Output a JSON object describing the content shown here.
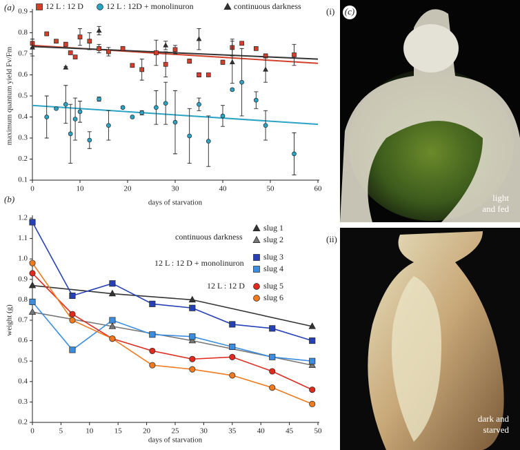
{
  "chart_data": [
    {
      "type": "scatter",
      "panel": "(a)",
      "y_label": "maximum quantum yield Fv/Fm",
      "x_label": "days of starvation",
      "xlim": [
        0,
        60
      ],
      "xticks": [
        0,
        10,
        20,
        30,
        40,
        50,
        60
      ],
      "ylim": [
        0.1,
        0.9
      ],
      "yticks": [
        0.1,
        0.2,
        0.3,
        0.4,
        0.5,
        0.6,
        0.7,
        0.8,
        0.9
      ],
      "legend": "top",
      "trend_x": [
        0,
        60
      ],
      "series": [
        {
          "name": "12 L : 12 D",
          "color": "#d2402c",
          "marker": "square",
          "x": [
            0,
            3,
            5,
            7,
            8,
            9,
            10,
            12,
            14,
            16,
            19,
            21,
            23,
            26,
            28,
            30,
            33,
            35,
            37,
            40,
            42,
            44,
            47,
            49,
            55
          ],
          "values": [
            0.75,
            0.795,
            0.76,
            0.745,
            0.705,
            0.685,
            0.78,
            0.76,
            0.725,
            0.71,
            0.725,
            0.645,
            0.625,
            0.705,
            0.65,
            0.72,
            0.665,
            0.6,
            0.6,
            0.66,
            0.73,
            0.75,
            0.725,
            0.69,
            0.695
          ],
          "errors": [
            0.02,
            0.005,
            0.005,
            0.01,
            0.005,
            0.005,
            0.04,
            0.04,
            0.02,
            0.02,
            0.01,
            0.005,
            0.05,
            0.06,
            0.06,
            0.02,
            0.01,
            0.01,
            0.005,
            0.01,
            0.04,
            0.005,
            0.005,
            0.01,
            0.05
          ],
          "trend": [
            0.74,
            0.655
          ]
        },
        {
          "name": "12 L : 12D + monolinuron",
          "color": "#2aa3c4",
          "marker": "circle",
          "x": [
            3,
            5,
            7,
            8,
            9,
            10,
            12,
            14,
            16,
            19,
            21,
            23,
            26,
            28,
            30,
            33,
            35,
            37,
            40,
            42,
            44,
            47,
            49,
            55
          ],
          "values": [
            0.4,
            0.44,
            0.46,
            0.32,
            0.39,
            0.425,
            0.29,
            0.485,
            0.36,
            0.445,
            0.4,
            0.42,
            0.445,
            0.465,
            0.375,
            0.31,
            0.46,
            0.285,
            0.405,
            0.53,
            0.565,
            0.48,
            0.36,
            0.225
          ],
          "errors": [
            0.1,
            0.005,
            0.09,
            0.14,
            0.1,
            0.05,
            0.04,
            0.01,
            0.07,
            0.005,
            0.005,
            0.01,
            0.08,
            0.1,
            0.15,
            0.13,
            0.03,
            0.12,
            0.05,
            0.005,
            0.16,
            0.04,
            0.07,
            0.1
          ],
          "trend": [
            0.455,
            0.365
          ]
        },
        {
          "name": "continuous darkness",
          "color": "#333333",
          "marker": "triangle",
          "x": [
            0,
            7,
            14,
            28,
            35,
            42,
            49
          ],
          "values": [
            0.73,
            0.635,
            0.81,
            0.74,
            0.77,
            0.66,
            0.625
          ],
          "errors": [
            0.04,
            0.005,
            0.02,
            0.02,
            0.05,
            0.1,
            0.06
          ],
          "trend": [
            0.735,
            0.675
          ]
        }
      ]
    },
    {
      "type": "line",
      "panel": "(b)",
      "y_label": "weight (g)",
      "x_label": "days of starvation",
      "xlim": [
        0,
        50
      ],
      "xticks": [
        0,
        5,
        10,
        15,
        20,
        25,
        30,
        35,
        40,
        45,
        50
      ],
      "ylim": [
        0.2,
        1.2
      ],
      "yticks": [
        0.2,
        0.3,
        0.4,
        0.5,
        0.6,
        0.7,
        0.8,
        0.9,
        {
          "value": 1,
          "label": "1.0"
        },
        1.1,
        1.2
      ],
      "legend": "right",
      "annotations": [
        "continuous darkness",
        "12 L : 12 D + monolinuron",
        "12 L : 12 D"
      ],
      "series": [
        {
          "name": "slug 1",
          "color": "#333333",
          "marker": "triangle",
          "x": [
            0,
            14,
            28,
            49
          ],
          "values": [
            0.87,
            0.83,
            0.8,
            0.67
          ]
        },
        {
          "name": "slug 2",
          "color": "#777777",
          "marker": "triangle",
          "x": [
            0,
            14,
            28,
            49
          ],
          "values": [
            0.74,
            0.67,
            0.6,
            0.48
          ]
        },
        {
          "name": "slug 3",
          "color": "#2640b8",
          "marker": "square",
          "x": [
            0,
            7,
            14,
            21,
            28,
            35,
            42,
            49
          ],
          "values": [
            1.18,
            0.82,
            0.88,
            0.78,
            0.76,
            0.68,
            0.66,
            0.6
          ]
        },
        {
          "name": "slug 4",
          "color": "#3a8de0",
          "marker": "square",
          "x": [
            0,
            7,
            14,
            21,
            28,
            35,
            42,
            49
          ],
          "values": [
            0.79,
            0.555,
            0.7,
            0.63,
            0.62,
            0.57,
            0.52,
            0.5
          ]
        },
        {
          "name": "slug 5",
          "color": "#e02a1e",
          "marker": "circle",
          "x": [
            0,
            7,
            14,
            21,
            28,
            35,
            42,
            49
          ],
          "values": [
            0.93,
            0.73,
            0.61,
            0.55,
            0.51,
            0.52,
            0.45,
            0.36
          ]
        },
        {
          "name": "slug 6",
          "color": "#f07a1e",
          "marker": "circle",
          "x": [
            0,
            7,
            14,
            21,
            28,
            35,
            42,
            49
          ],
          "values": [
            0.98,
            0.7,
            0.61,
            0.48,
            0.46,
            0.43,
            0.37,
            0.29
          ]
        }
      ]
    }
  ],
  "photos": {
    "panel": "(c)",
    "top_label": "(i)",
    "top_caption": [
      "light",
      "and fed"
    ],
    "bottom_label": "(ii)",
    "bottom_caption": [
      "dark and",
      "starved"
    ]
  }
}
